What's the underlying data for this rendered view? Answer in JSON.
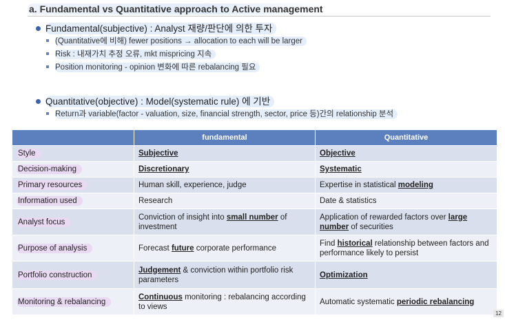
{
  "title": "a. Fundamental vs Quantitative approach to Active management",
  "fundamental_bullet": {
    "text": "Fundamental(subjective) : Analyst 재량/판단에 의한 투자",
    "subs": [
      "(Quantitative에 비해) fewer positions → allocation to each will be larger",
      "Risk : 내재가치 추정 오류, mkt mispricing 지속",
      "Position monitoring - opinion 변화에 따른 rebalancing 필요"
    ]
  },
  "quant_bullet": {
    "text": "Quantitative(objective) : Model(systematic rule) 에 기반",
    "subs": [
      "Return과 variable(factor - valuation, size, financial strength, sector, price 등)간의 relationship 분석"
    ]
  },
  "table": {
    "headers": [
      "",
      "fundamental",
      "Quantitative"
    ],
    "rows": [
      {
        "label": "Style",
        "fund": [
          {
            "t": "Subjective",
            "u": true
          }
        ],
        "quant": [
          {
            "t": "Objective",
            "u": true
          }
        ]
      },
      {
        "label": "Decision-making",
        "fund": [
          {
            "t": "Discretionary",
            "u": true
          }
        ],
        "quant": [
          {
            "t": "Systematic",
            "u": true
          }
        ]
      },
      {
        "label": "Primary resources",
        "fund": [
          {
            "t": "Human skill, experience, judge",
            "u": false
          }
        ],
        "quant": [
          {
            "t": "Expertise in statistical ",
            "u": false
          },
          {
            "t": "modeling",
            "u": true
          }
        ]
      },
      {
        "label": "Information used",
        "fund": [
          {
            "t": "Research",
            "u": false
          }
        ],
        "quant": [
          {
            "t": "Date & statistics",
            "u": false
          }
        ]
      },
      {
        "label": "Analyst focus",
        "fund": [
          {
            "t": "Conviction of insight into ",
            "u": false
          },
          {
            "t": "small number",
            "u": true
          },
          {
            "t": " of investment",
            "u": false
          }
        ],
        "quant": [
          {
            "t": "Application of rewarded factors over ",
            "u": false
          },
          {
            "t": "large number",
            "u": true
          },
          {
            "t": " of securities",
            "u": false
          }
        ]
      },
      {
        "label": "Purpose of analysis",
        "fund": [
          {
            "t": "Forecast ",
            "u": false
          },
          {
            "t": "future",
            "u": true
          },
          {
            "t": " corporate performance",
            "u": false
          }
        ],
        "quant": [
          {
            "t": "Find ",
            "u": false
          },
          {
            "t": "historical",
            "u": true
          },
          {
            "t": " relationship between factors and performance likely to persist",
            "u": false
          }
        ]
      },
      {
        "label": "Portfolio construction",
        "fund": [
          {
            "t": "Judgement",
            "u": true
          },
          {
            "t": " & conviction within portfolio risk parameters",
            "u": false
          }
        ],
        "quant": [
          {
            "t": "Optimization",
            "u": true
          }
        ]
      },
      {
        "label": "Monitoring & rebalancing",
        "fund": [
          {
            "t": "Continuous",
            "u": true
          },
          {
            "t": " monitoring : rebalancing according to views",
            "u": false
          }
        ],
        "quant": [
          {
            "t": "Automatic systematic ",
            "u": false
          },
          {
            "t": "periodic rebalancing",
            "u": true
          }
        ]
      }
    ]
  },
  "page_number": "12",
  "colors": {
    "header_bg": "#5b80bd",
    "row_odd": "#d9dfec",
    "row_even": "#edf0f6",
    "bullet": "#3d63a8"
  }
}
